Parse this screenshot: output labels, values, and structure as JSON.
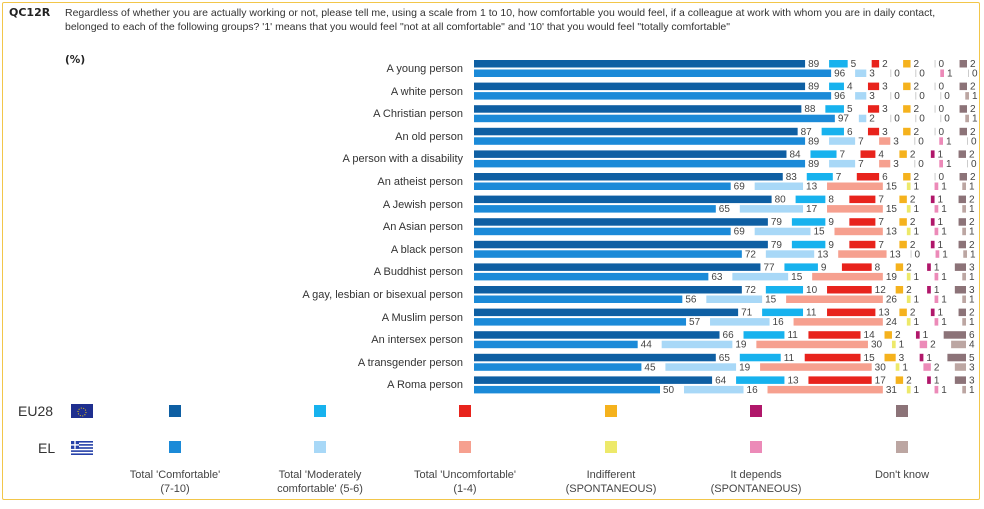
{
  "header": {
    "code": "QC12R",
    "question": "Regardless of whether you are actually working or not, please tell me, using a scale from 1 to 10, how comfortable you would feel, if a colleague at work with whom you are in daily contact, belonged to each of the following groups? '1' means that you would feel \"not at all comfortable\" and '10' that you would feel \"totally comfortable\"",
    "unit": "(%)"
  },
  "legend": {
    "countries": [
      {
        "code": "EU28",
        "flag": "eu-flag-icon"
      },
      {
        "code": "EL",
        "flag": "greece-flag-icon"
      }
    ],
    "categories": [
      {
        "line1": "Total 'Comfortable'",
        "line2": "(7-10)",
        "eu_color": "#0e5fa3",
        "el_color": "#1b8ad8"
      },
      {
        "line1": "Total 'Moderately",
        "line2": "comfortable' (5-6)",
        "eu_color": "#17b2ee",
        "el_color": "#a8d8f7"
      },
      {
        "line1": "Total 'Uncomfortable'",
        "line2": "(1-4)",
        "eu_color": "#e8231c",
        "el_color": "#f6a08f"
      },
      {
        "line1": "Indifferent",
        "line2": "(SPONTANEOUS)",
        "eu_color": "#f5b21d",
        "el_color": "#ede96a"
      },
      {
        "line1": "It depends",
        "line2": "(SPONTANEOUS)",
        "eu_color": "#b0176a",
        "el_color": "#ec8ab8"
      },
      {
        "line1": "Don't know",
        "line2": "",
        "eu_color": "#8c7378",
        "el_color": "#bca6a2"
      }
    ]
  },
  "chart_data": {
    "type": "bar",
    "orientation": "horizontal-stacked-spaced",
    "title": "QC12R",
    "xlabel": "",
    "ylabel": "",
    "unit": "%",
    "series": [
      "Total 'Comfortable' (7-10)",
      "Total 'Moderately comfortable' (5-6)",
      "Total 'Uncomfortable' (1-4)",
      "Indifferent (SPONTANEOUS)",
      "It depends (SPONTANEOUS)",
      "Don't know"
    ],
    "categories": [
      "A young person",
      "A white person",
      "A Christian person",
      "An old person",
      "A person with a disability",
      "An atheist person",
      "A Jewish person",
      "An Asian person",
      "A black person",
      "A Buddhist person",
      "A gay, lesbian or bisexual person",
      "A Muslim person",
      "An intersex person",
      "A transgender person",
      "A Roma person"
    ],
    "EU28": [
      [
        89,
        5,
        2,
        2,
        0,
        2
      ],
      [
        89,
        4,
        3,
        2,
        0,
        2
      ],
      [
        88,
        5,
        3,
        2,
        0,
        2
      ],
      [
        87,
        6,
        3,
        2,
        0,
        2
      ],
      [
        84,
        7,
        4,
        2,
        1,
        2
      ],
      [
        83,
        7,
        6,
        2,
        0,
        2
      ],
      [
        80,
        8,
        7,
        2,
        1,
        2
      ],
      [
        79,
        9,
        7,
        2,
        1,
        2
      ],
      [
        79,
        9,
        7,
        2,
        1,
        2
      ],
      [
        77,
        9,
        8,
        2,
        1,
        3
      ],
      [
        72,
        10,
        12,
        2,
        1,
        3
      ],
      [
        71,
        11,
        13,
        2,
        1,
        2
      ],
      [
        66,
        11,
        14,
        2,
        1,
        6
      ],
      [
        65,
        11,
        15,
        3,
        1,
        5
      ],
      [
        64,
        13,
        17,
        2,
        1,
        3
      ]
    ],
    "EL": [
      [
        96,
        3,
        0,
        0,
        1,
        0
      ],
      [
        96,
        3,
        0,
        0,
        0,
        1
      ],
      [
        97,
        2,
        0,
        0,
        0,
        1
      ],
      [
        89,
        7,
        3,
        0,
        1,
        0
      ],
      [
        89,
        7,
        3,
        0,
        1,
        0
      ],
      [
        69,
        13,
        15,
        1,
        1,
        1
      ],
      [
        65,
        17,
        15,
        1,
        1,
        1
      ],
      [
        69,
        15,
        13,
        1,
        1,
        1
      ],
      [
        72,
        13,
        13,
        0,
        1,
        1
      ],
      [
        63,
        15,
        19,
        1,
        1,
        1
      ],
      [
        56,
        15,
        26,
        1,
        1,
        1
      ],
      [
        57,
        16,
        24,
        1,
        1,
        1
      ],
      [
        44,
        19,
        30,
        1,
        2,
        4
      ],
      [
        45,
        19,
        30,
        1,
        2,
        3
      ],
      [
        50,
        16,
        31,
        1,
        1,
        1
      ]
    ]
  }
}
